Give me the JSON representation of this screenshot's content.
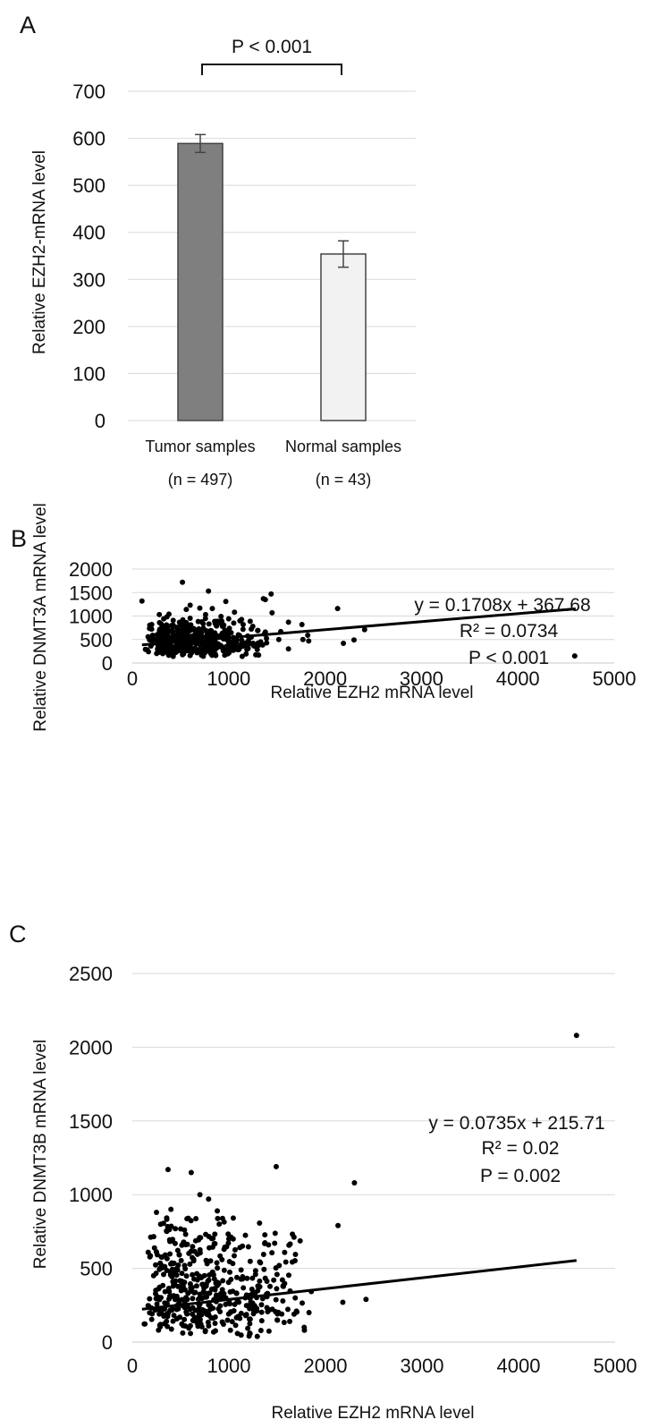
{
  "chart_data": [
    {
      "panel": "A",
      "type": "bar",
      "ylabel": "Relative EZH2-mRNA  level",
      "ylim": [
        0,
        700
      ],
      "yticks": [
        0,
        100,
        200,
        300,
        400,
        500,
        600,
        700
      ],
      "grid": true,
      "categories": [
        "Tumor samples",
        "Normal samples"
      ],
      "sublabels": [
        "(n = 497)",
        "(n = 43)"
      ],
      "values": [
        589,
        354
      ],
      "errors": [
        19,
        28
      ],
      "bar_colors": [
        "#7f7f7f",
        "#f2f2f2"
      ],
      "significance": "P < 0.001"
    },
    {
      "panel": "B",
      "type": "scatter",
      "xlabel": "Relative EZH2 mRNA level",
      "ylabel": "Relative  DNMT3A mRNA level",
      "xlim": [
        0,
        5000
      ],
      "ylim": [
        0,
        2000
      ],
      "xticks": [
        0,
        1000,
        2000,
        3000,
        4000,
        5000
      ],
      "yticks": [
        0,
        500,
        1000,
        1500,
        2000
      ],
      "grid": true,
      "trendline": {
        "slope": 0.1708,
        "intercept": 367.68,
        "x_range": [
          100,
          4600
        ]
      },
      "annotations": [
        "y = 0.1708x + 367.68",
        "R² = 0.0734",
        "P < 0.001"
      ],
      "cluster": {
        "n": 470,
        "x_min": 120,
        "x_mode": 420,
        "x_max": 1450,
        "y_min": 130,
        "y_mode": 330,
        "y_max": 1000
      },
      "points": [
        [
          520,
          1720
        ],
        [
          790,
          1530
        ],
        [
          100,
          1320
        ],
        [
          970,
          1310
        ],
        [
          1440,
          1470
        ],
        [
          1360,
          1370
        ],
        [
          1380,
          1350
        ],
        [
          1450,
          1070
        ],
        [
          2130,
          1160
        ],
        [
          1620,
          870
        ],
        [
          1760,
          820
        ],
        [
          1540,
          670
        ],
        [
          1820,
          590
        ],
        [
          1770,
          500
        ],
        [
          1830,
          470
        ],
        [
          2410,
          710
        ],
        [
          2300,
          490
        ],
        [
          2190,
          420
        ],
        [
          1620,
          300
        ],
        [
          1140,
          140
        ],
        [
          1310,
          170
        ],
        [
          4590,
          150
        ],
        [
          600,
          1230
        ],
        [
          560,
          1140
        ],
        [
          700,
          1170
        ],
        [
          830,
          1160
        ],
        [
          1000,
          940
        ],
        [
          1150,
          820
        ],
        [
          1250,
          780
        ],
        [
          1300,
          690
        ],
        [
          1380,
          660
        ],
        [
          1520,
          500
        ],
        [
          1060,
          1080
        ],
        [
          920,
          990
        ],
        [
          760,
          1030
        ],
        [
          280,
          1030
        ],
        [
          380,
          1040
        ],
        [
          860,
          840
        ],
        [
          960,
          700
        ],
        [
          1100,
          600
        ]
      ]
    },
    {
      "panel": "C",
      "type": "scatter",
      "xlabel": "Relative EZH2 mRNA level",
      "ylabel": "Relative  DNMT3B mRNA level",
      "xlim": [
        0,
        5000
      ],
      "ylim": [
        0,
        2500
      ],
      "xticks": [
        0,
        1000,
        2000,
        3000,
        4000,
        5000
      ],
      "yticks": [
        0,
        500,
        1000,
        1500,
        2000,
        2500
      ],
      "grid": true,
      "trendline": {
        "slope": 0.0735,
        "intercept": 215.71,
        "x_range": [
          100,
          4600
        ]
      },
      "annotations": [
        "y = 0.0735x + 215.71",
        "R² = 0.02",
        "P = 0.002"
      ],
      "cluster": {
        "n": 470,
        "x_min": 100,
        "x_mode": 420,
        "x_max": 1900,
        "y_min": 20,
        "y_mode": 200,
        "y_max": 900
      },
      "points": [
        [
          4600,
          2080
        ],
        [
          1490,
          1190
        ],
        [
          2300,
          1080
        ],
        [
          2130,
          790
        ],
        [
          2180,
          270
        ],
        [
          2420,
          290
        ],
        [
          610,
          1150
        ],
        [
          370,
          1170
        ],
        [
          700,
          1000
        ],
        [
          790,
          970
        ],
        [
          880,
          890
        ],
        [
          900,
          800
        ],
        [
          250,
          880
        ],
        [
          400,
          900
        ],
        [
          580,
          840
        ],
        [
          540,
          760
        ],
        [
          1000,
          700
        ],
        [
          1300,
          380
        ],
        [
          1560,
          380
        ],
        [
          1400,
          330
        ],
        [
          1700,
          210
        ],
        [
          1830,
          200
        ],
        [
          1780,
          100
        ],
        [
          1630,
          140
        ],
        [
          1500,
          150
        ],
        [
          1080,
          330
        ],
        [
          1170,
          300
        ],
        [
          1240,
          260
        ]
      ]
    }
  ]
}
